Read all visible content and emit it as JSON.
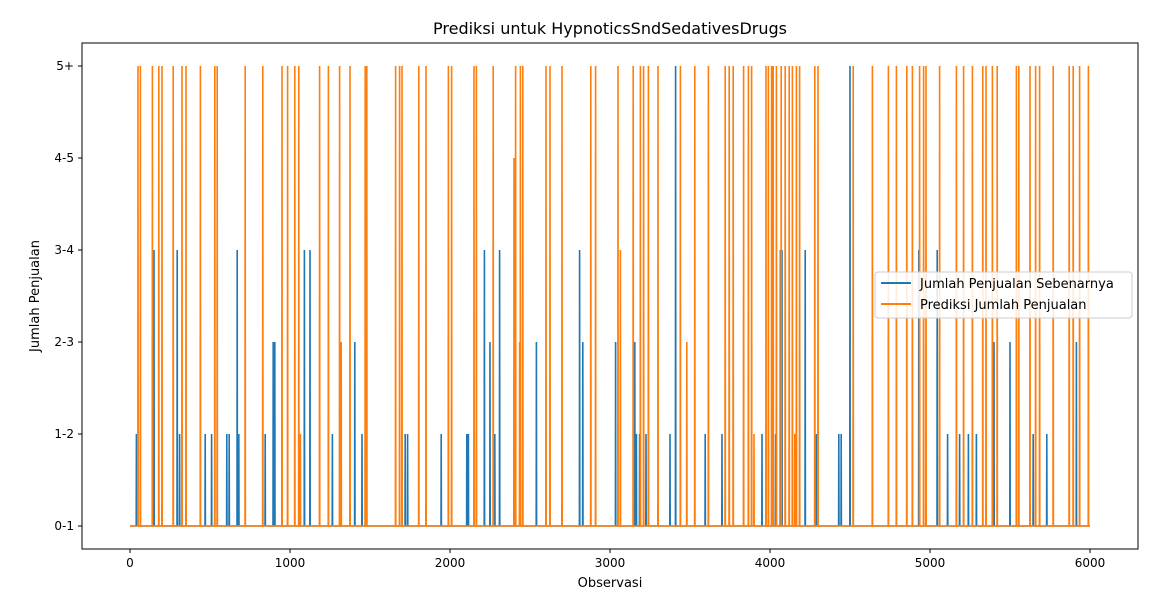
{
  "chart_data": {
    "type": "line",
    "title": "Prediksi untuk HypnoticsSndSedativesDrugs",
    "xlabel": "Observasi",
    "ylabel": "Jumlah Penjualan",
    "xlim": [
      -300,
      6300
    ],
    "ylim": [
      -0.25,
      5.25
    ],
    "x_ticks": [
      0,
      1000,
      2000,
      3000,
      4000,
      5000,
      6000
    ],
    "y_ticks": [
      0,
      1,
      2,
      3,
      4,
      5
    ],
    "y_tick_labels": [
      "0-1",
      "1-2",
      "2-3",
      "3-4",
      "4-5",
      "5+"
    ],
    "x_max": 6000,
    "legend_position": "center-right",
    "series": [
      {
        "name": "Jumlah Penjualan Sebenarnya",
        "color": "#1f77b4",
        "baseline": 0,
        "spikes": [
          [
            40,
            1
          ],
          [
            150,
            3
          ],
          [
            295,
            3
          ],
          [
            310,
            1
          ],
          [
            470,
            1
          ],
          [
            510,
            1
          ],
          [
            605,
            1
          ],
          [
            620,
            1
          ],
          [
            670,
            3
          ],
          [
            680,
            1
          ],
          [
            845,
            1
          ],
          [
            895,
            2
          ],
          [
            905,
            2
          ],
          [
            1090,
            3
          ],
          [
            1125,
            3
          ],
          [
            1265,
            1
          ],
          [
            1405,
            2
          ],
          [
            1450,
            1
          ],
          [
            1720,
            1
          ],
          [
            1735,
            1
          ],
          [
            1945,
            1
          ],
          [
            2105,
            1
          ],
          [
            2115,
            1
          ],
          [
            2215,
            3
          ],
          [
            2250,
            2
          ],
          [
            2280,
            1
          ],
          [
            2310,
            3
          ],
          [
            2400,
            1
          ],
          [
            2540,
            2
          ],
          [
            2810,
            3
          ],
          [
            2830,
            2
          ],
          [
            3035,
            2
          ],
          [
            3155,
            2
          ],
          [
            3165,
            1
          ],
          [
            3185,
            1
          ],
          [
            3225,
            1
          ],
          [
            3375,
            1
          ],
          [
            3410,
            5
          ],
          [
            3595,
            1
          ],
          [
            3700,
            1
          ],
          [
            3950,
            1
          ],
          [
            4035,
            1
          ],
          [
            4065,
            3
          ],
          [
            4075,
            3
          ],
          [
            4220,
            3
          ],
          [
            4290,
            1
          ],
          [
            4430,
            1
          ],
          [
            4445,
            1
          ],
          [
            4500,
            5
          ],
          [
            4930,
            3
          ],
          [
            5045,
            3
          ],
          [
            5110,
            1
          ],
          [
            5185,
            1
          ],
          [
            5240,
            1
          ],
          [
            5290,
            1
          ],
          [
            5400,
            2
          ],
          [
            5500,
            2
          ],
          [
            5645,
            1
          ],
          [
            5730,
            1
          ],
          [
            5915,
            2
          ]
        ]
      },
      {
        "name": "Prediksi Jumlah Penjualan",
        "color": "#ff7f0e",
        "baseline": 0,
        "spikes": [
          [
            50,
            5
          ],
          [
            65,
            5
          ],
          [
            140,
            5
          ],
          [
            180,
            5
          ],
          [
            200,
            5
          ],
          [
            270,
            5
          ],
          [
            325,
            5
          ],
          [
            350,
            5
          ],
          [
            440,
            5
          ],
          [
            530,
            5
          ],
          [
            545,
            5
          ],
          [
            720,
            5
          ],
          [
            830,
            5
          ],
          [
            950,
            5
          ],
          [
            985,
            5
          ],
          [
            1030,
            5
          ],
          [
            1055,
            5
          ],
          [
            1065,
            1
          ],
          [
            1185,
            5
          ],
          [
            1240,
            5
          ],
          [
            1310,
            5
          ],
          [
            1320,
            2
          ],
          [
            1375,
            5
          ],
          [
            1470,
            5
          ],
          [
            1480,
            5
          ],
          [
            1660,
            5
          ],
          [
            1685,
            5
          ],
          [
            1700,
            5
          ],
          [
            1805,
            5
          ],
          [
            1850,
            5
          ],
          [
            1990,
            5
          ],
          [
            2010,
            5
          ],
          [
            2150,
            5
          ],
          [
            2165,
            5
          ],
          [
            2270,
            5
          ],
          [
            2400,
            4
          ],
          [
            2410,
            5
          ],
          [
            2435,
            2
          ],
          [
            2440,
            5
          ],
          [
            2455,
            5
          ],
          [
            2600,
            5
          ],
          [
            2625,
            5
          ],
          [
            2700,
            5
          ],
          [
            2880,
            5
          ],
          [
            2910,
            5
          ],
          [
            3050,
            5
          ],
          [
            3065,
            3
          ],
          [
            3145,
            5
          ],
          [
            3190,
            5
          ],
          [
            3210,
            5
          ],
          [
            3240,
            5
          ],
          [
            3300,
            5
          ],
          [
            3440,
            5
          ],
          [
            3480,
            2
          ],
          [
            3530,
            5
          ],
          [
            3615,
            5
          ],
          [
            3720,
            5
          ],
          [
            3745,
            5
          ],
          [
            3770,
            5
          ],
          [
            3835,
            5
          ],
          [
            3865,
            5
          ],
          [
            3885,
            5
          ],
          [
            3900,
            1
          ],
          [
            3975,
            5
          ],
          [
            3990,
            5
          ],
          [
            4010,
            5
          ],
          [
            4020,
            5
          ],
          [
            4040,
            5
          ],
          [
            4070,
            5
          ],
          [
            4095,
            5
          ],
          [
            4120,
            5
          ],
          [
            4140,
            5
          ],
          [
            4155,
            1
          ],
          [
            4165,
            5
          ],
          [
            4185,
            5
          ],
          [
            4280,
            5
          ],
          [
            4300,
            5
          ],
          [
            4520,
            5
          ],
          [
            4640,
            5
          ],
          [
            4740,
            5
          ],
          [
            4790,
            5
          ],
          [
            4855,
            5
          ],
          [
            4890,
            5
          ],
          [
            4935,
            5
          ],
          [
            4960,
            5
          ],
          [
            4975,
            5
          ],
          [
            5060,
            5
          ],
          [
            5165,
            5
          ],
          [
            5210,
            5
          ],
          [
            5265,
            5
          ],
          [
            5330,
            5
          ],
          [
            5350,
            5
          ],
          [
            5390,
            5
          ],
          [
            5420,
            5
          ],
          [
            5540,
            5
          ],
          [
            5555,
            5
          ],
          [
            5625,
            5
          ],
          [
            5660,
            5
          ],
          [
            5685,
            5
          ],
          [
            5770,
            5
          ],
          [
            5870,
            5
          ],
          [
            5895,
            5
          ],
          [
            5935,
            5
          ],
          [
            5990,
            5
          ]
        ]
      }
    ]
  }
}
